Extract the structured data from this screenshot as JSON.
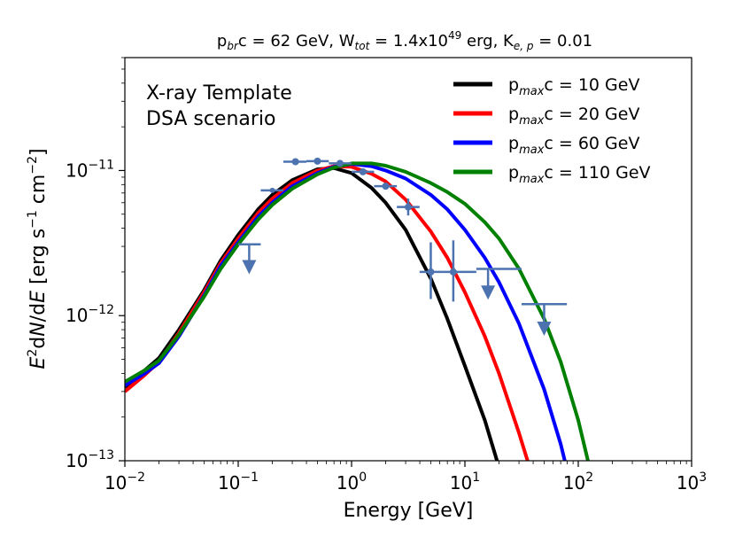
{
  "chart_data": {
    "type": "line",
    "title": {
      "p1": "p",
      "p1_sub": "br",
      "p1_rest": "c = 62 GeV, W",
      "w_sub": "tot",
      "w_rest": "= 1.4x10",
      "w_exp": "49",
      "w_unit": " erg, K",
      "k_sub": "e, p",
      "k_rest": " = 0.01"
    },
    "xlabel": "Energy [GeV]",
    "ylabel": {
      "e": "E",
      "e_sup": "2",
      "dn": "d",
      "n": "N",
      "slash_d": "/d",
      "e2": "E",
      "units_open": " [erg s",
      "s_exp": "−1",
      "cm": " cm",
      "cm_exp": "−2",
      "units_close": "]"
    },
    "xscale": "log",
    "yscale": "log",
    "xlim": [
      0.01,
      1000
    ],
    "ylim": [
      1e-13,
      6e-11
    ],
    "x_ticks": [
      {
        "value": 0.01,
        "base": "10",
        "exp": "−2"
      },
      {
        "value": 0.1,
        "base": "10",
        "exp": "−1"
      },
      {
        "value": 1,
        "base": "10",
        "exp": "0"
      },
      {
        "value": 10,
        "base": "10",
        "exp": "1"
      },
      {
        "value": 100,
        "base": "10",
        "exp": "2"
      },
      {
        "value": 1000,
        "base": "10",
        "exp": "3"
      }
    ],
    "y_ticks": [
      {
        "value": 1e-13,
        "base": "10",
        "exp": "−13"
      },
      {
        "value": 1e-12,
        "base": "10",
        "exp": "−12"
      },
      {
        "value": 1e-11,
        "base": "10",
        "exp": "−11"
      }
    ],
    "annotation": [
      "X-ray Template",
      "DSA scenario"
    ],
    "legend_position": "top-right",
    "series": [
      {
        "name": "10 GeV",
        "label_p": "p",
        "label_sub": "max",
        "label_rest": "c = 10 GeV",
        "color": "#000000",
        "points": [
          [
            0.01,
            3.2e-13
          ],
          [
            0.015,
            4.2e-13
          ],
          [
            0.02,
            5.1e-13
          ],
          [
            0.03,
            8e-13
          ],
          [
            0.05,
            1.5e-12
          ],
          [
            0.07,
            2.4e-12
          ],
          [
            0.1,
            3.6e-12
          ],
          [
            0.15,
            5.4e-12
          ],
          [
            0.2,
            6.8e-12
          ],
          [
            0.3,
            8.6e-12
          ],
          [
            0.5,
            1.02e-11
          ],
          [
            0.7,
            1.04e-11
          ],
          [
            1,
            9.6e-12
          ],
          [
            1.5,
            7.6e-12
          ],
          [
            2,
            6e-12
          ],
          [
            3,
            3.9e-12
          ],
          [
            5,
            1.8e-12
          ],
          [
            7,
            9.5e-13
          ],
          [
            10,
            4.5e-13
          ],
          [
            15,
            1.9e-13
          ],
          [
            20,
            9e-14
          ]
        ]
      },
      {
        "name": "20 GeV",
        "label_p": "p",
        "label_sub": "max",
        "label_rest": "c = 20 GeV",
        "color": "#ff0000",
        "points": [
          [
            0.01,
            3e-13
          ],
          [
            0.015,
            3.9e-13
          ],
          [
            0.02,
            4.8e-13
          ],
          [
            0.03,
            7.6e-13
          ],
          [
            0.05,
            1.45e-12
          ],
          [
            0.07,
            2.3e-12
          ],
          [
            0.1,
            3.4e-12
          ],
          [
            0.15,
            5.1e-12
          ],
          [
            0.2,
            6.4e-12
          ],
          [
            0.3,
            8.2e-12
          ],
          [
            0.5,
            1e-11
          ],
          [
            0.7,
            1.07e-11
          ],
          [
            1,
            1.06e-11
          ],
          [
            1.5,
            9.5e-12
          ],
          [
            2,
            8.4e-12
          ],
          [
            3,
            6.3e-12
          ],
          [
            5,
            3.8e-12
          ],
          [
            7,
            2.5e-12
          ],
          [
            10,
            1.45e-12
          ],
          [
            15,
            7.2e-13
          ],
          [
            20,
            4e-13
          ],
          [
            30,
            1.55e-13
          ],
          [
            40,
            7.5e-14
          ]
        ]
      },
      {
        "name": "60 GeV",
        "label_p": "p",
        "label_sub": "max",
        "label_rest": "c = 60 GeV",
        "color": "#0000ff",
        "points": [
          [
            0.01,
            3.3e-13
          ],
          [
            0.015,
            4e-13
          ],
          [
            0.02,
            4.7e-13
          ],
          [
            0.03,
            7.2e-13
          ],
          [
            0.05,
            1.38e-12
          ],
          [
            0.07,
            2.2e-12
          ],
          [
            0.1,
            3.2e-12
          ],
          [
            0.15,
            4.8e-12
          ],
          [
            0.2,
            6e-12
          ],
          [
            0.3,
            7.8e-12
          ],
          [
            0.5,
            9.6e-12
          ],
          [
            0.7,
            1.06e-11
          ],
          [
            1,
            1.11e-11
          ],
          [
            1.5,
            1.07e-11
          ],
          [
            2,
            1e-11
          ],
          [
            3,
            8.8e-12
          ],
          [
            5,
            6.8e-12
          ],
          [
            7,
            5.4e-12
          ],
          [
            10,
            3.9e-12
          ],
          [
            15,
            2.5e-12
          ],
          [
            20,
            1.7e-12
          ],
          [
            30,
            8.8e-13
          ],
          [
            50,
            3.1e-13
          ],
          [
            70,
            1.3e-13
          ],
          [
            80,
            8.5e-14
          ]
        ]
      },
      {
        "name": "110 GeV",
        "label_p": "p",
        "label_sub": "max",
        "label_rest": "c = 110 GeV",
        "color": "#008000",
        "points": [
          [
            0.01,
            3.5e-13
          ],
          [
            0.015,
            4.2e-13
          ],
          [
            0.02,
            4.9e-13
          ],
          [
            0.03,
            7.4e-13
          ],
          [
            0.05,
            1.35e-12
          ],
          [
            0.07,
            2.1e-12
          ],
          [
            0.1,
            3.1e-12
          ],
          [
            0.15,
            4.6e-12
          ],
          [
            0.2,
            5.8e-12
          ],
          [
            0.3,
            7.5e-12
          ],
          [
            0.5,
            9.4e-12
          ],
          [
            0.7,
            1.05e-11
          ],
          [
            1,
            1.12e-11
          ],
          [
            1.5,
            1.12e-11
          ],
          [
            2,
            1.08e-11
          ],
          [
            3,
            9.8e-12
          ],
          [
            5,
            8.2e-12
          ],
          [
            7,
            7.1e-12
          ],
          [
            10,
            5.9e-12
          ],
          [
            15,
            4.4e-12
          ],
          [
            20,
            3.4e-12
          ],
          [
            30,
            2.1e-12
          ],
          [
            50,
            9.5e-13
          ],
          [
            70,
            4.8e-13
          ],
          [
            100,
            1.9e-13
          ],
          [
            120,
            1.05e-13
          ],
          [
            130,
            8e-14
          ]
        ]
      }
    ],
    "data_points": [
      {
        "x": 0.32,
        "y": 1.15e-11,
        "xerr": [
          0.25,
          0.4
        ]
      },
      {
        "x": 0.5,
        "y": 1.16e-11,
        "xerr": [
          0.4,
          0.63
        ]
      },
      {
        "x": 0.79,
        "y": 1.12e-11,
        "xerr": [
          0.63,
          1.0
        ]
      },
      {
        "x": 1.26,
        "y": 9.8e-12,
        "xerr": [
          1.0,
          1.58
        ]
      },
      {
        "x": 2.0,
        "y": 7.8e-12,
        "xerr": [
          1.58,
          2.51
        ]
      },
      {
        "x": 3.16,
        "y": 5.6e-12,
        "yerr": [
          4.9e-12,
          6.4e-12
        ],
        "xerr": [
          2.51,
          3.98
        ]
      },
      {
        "x": 5.0,
        "y": 2e-12,
        "yerr": [
          1.3e-12,
          3.2e-12
        ],
        "xerr": [
          3.98,
          6.31
        ]
      },
      {
        "x": 7.9,
        "y": 2e-12,
        "yerr": [
          1.25e-12,
          3.3e-12
        ],
        "xerr": [
          6.31,
          12.6
        ]
      }
    ],
    "upper_limits": [
      {
        "x": 0.125,
        "y": 3.1e-12,
        "xerr": [
          0.1,
          0.158
        ],
        "arrow_to": 2.1e-12
      },
      {
        "x": 0.2,
        "y": 7.3e-12,
        "xerr": [
          0.158,
          0.25
        ],
        "arrow_to": null
      },
      {
        "x": 16,
        "y": 2.1e-12,
        "xerr": [
          12.6,
          31.6
        ],
        "arrow_to": 1.4e-12
      },
      {
        "x": 50,
        "y": 1.2e-12,
        "xerr": [
          31.6,
          79.4
        ],
        "arrow_to": 7.9e-13
      }
    ],
    "marker_color": "#4c72b0"
  }
}
